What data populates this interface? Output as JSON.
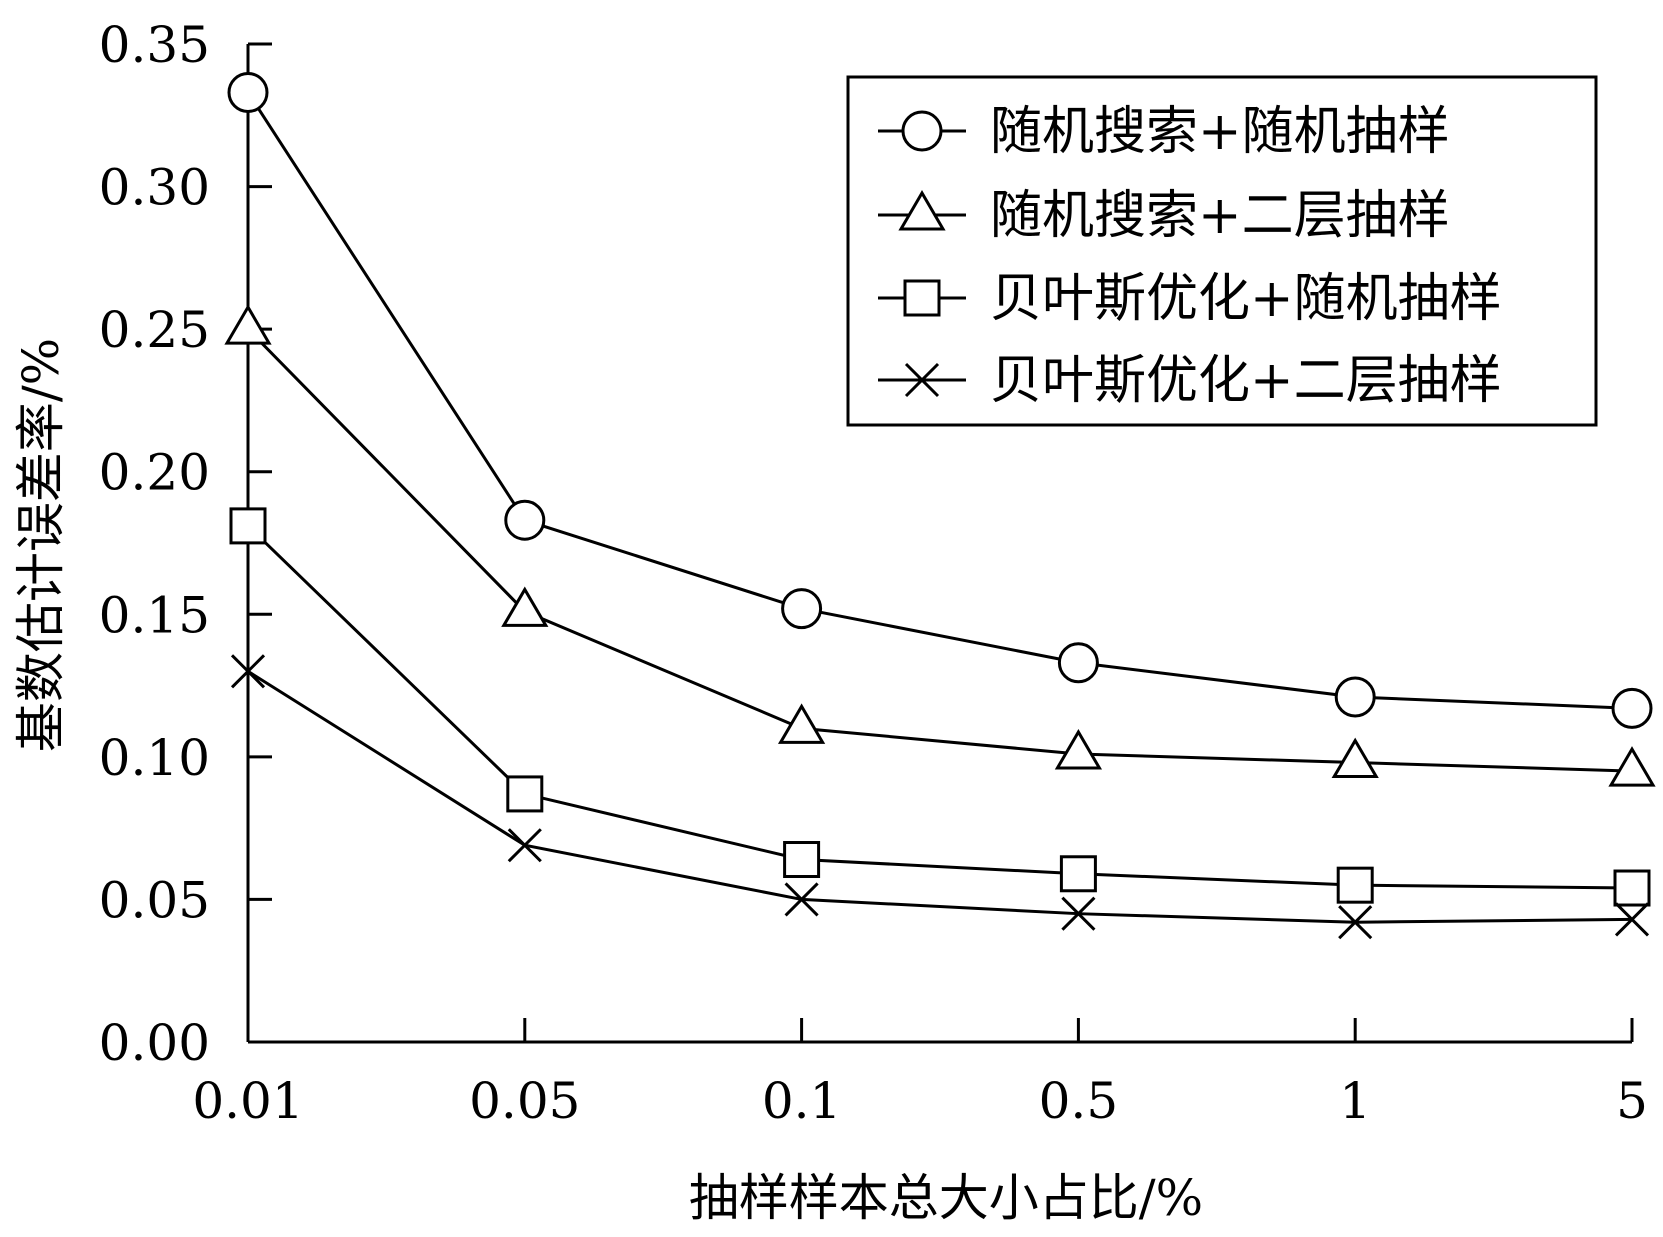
{
  "chart_data": {
    "type": "line",
    "title": "",
    "xlabel": "抽样样本总大小占比/%",
    "ylabel": "基数估计误差率/%",
    "categories": [
      "0.01",
      "0.05",
      "0.1",
      "0.5",
      "1",
      "5"
    ],
    "ylim": [
      0,
      0.35
    ],
    "yticks": [
      "0.00",
      "0.05",
      "0.10",
      "0.15",
      "0.20",
      "0.25",
      "0.30",
      "0.35"
    ],
    "grid": false,
    "legend_position": "top-right",
    "series": [
      {
        "name": "随机搜索+随机抽样",
        "marker": "circle",
        "values": [
          0.333,
          0.183,
          0.152,
          0.133,
          0.121,
          0.117
        ]
      },
      {
        "name": "随机搜索+二层抽样",
        "marker": "triangle",
        "values": [
          0.25,
          0.151,
          0.11,
          0.101,
          0.098,
          0.095
        ]
      },
      {
        "name": "贝叶斯优化+随机抽样",
        "marker": "square",
        "values": [
          0.181,
          0.087,
          0.064,
          0.059,
          0.055,
          0.054
        ]
      },
      {
        "name": "贝叶斯优化+二层抽样",
        "marker": "cross",
        "values": [
          0.13,
          0.069,
          0.05,
          0.045,
          0.042,
          0.043
        ]
      }
    ],
    "colors": {
      "line": "#000000",
      "background": "#ffffff"
    }
  }
}
